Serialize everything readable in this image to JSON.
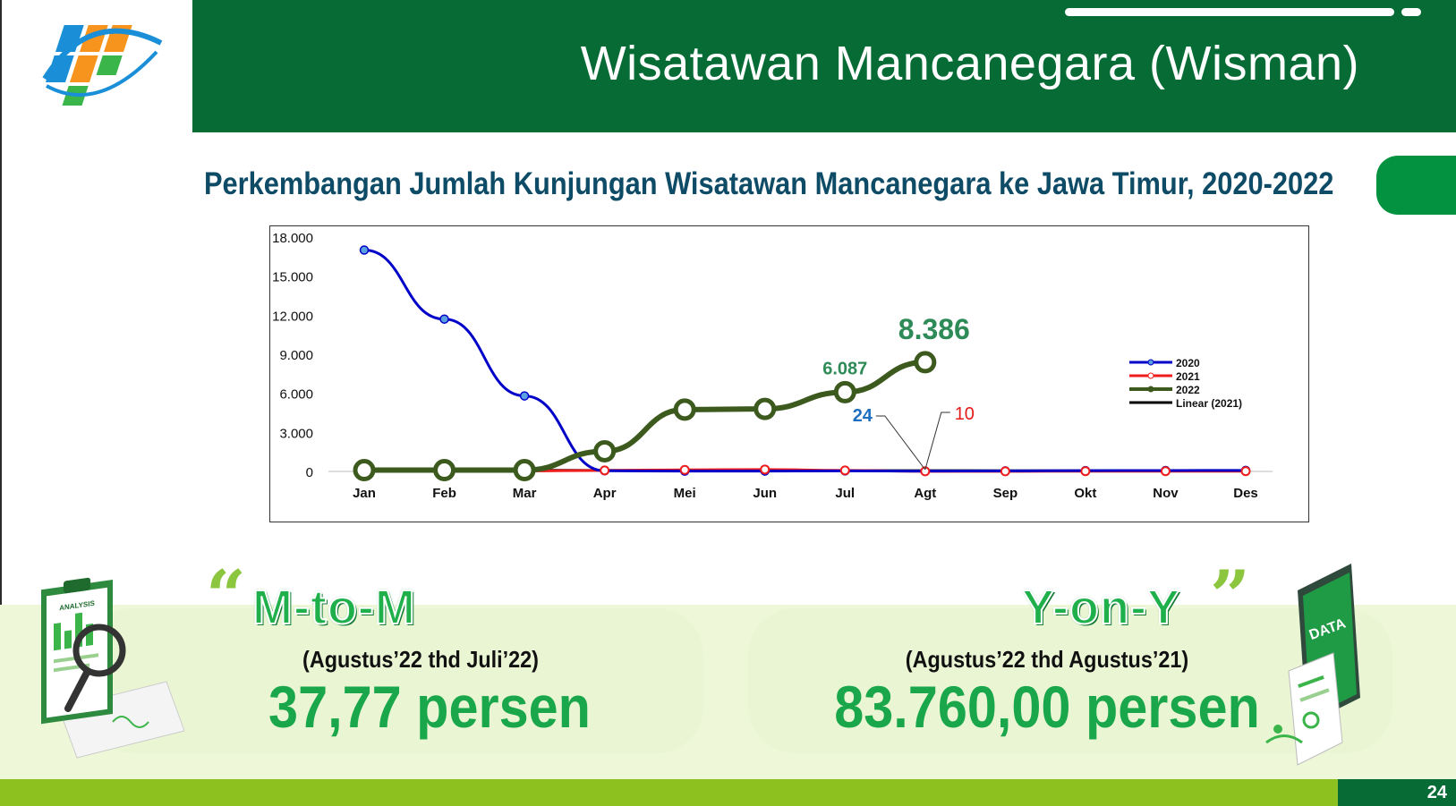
{
  "header": {
    "title": "Wisatawan Mancanegara (Wisman)"
  },
  "subtitle": "Perkembangan Jumlah Kunjungan Wisatawan Mancanegara ke Jawa Timur, 2020-2022",
  "colors": {
    "header_green": "#076b35",
    "accent_green": "#1aa64a",
    "footer_lime": "#8dc11f",
    "series_2020": "#0000c8",
    "series_2021": "#ee1c1c",
    "series_2022": "#3d5a1e",
    "linear_2021": "#000000"
  },
  "chart_data": {
    "type": "line",
    "categories": [
      "Jan",
      "Feb",
      "Mar",
      "Apr",
      "Mei",
      "Jun",
      "Jul",
      "Agt",
      "Sep",
      "Okt",
      "Nov",
      "Des"
    ],
    "y_ticks": [
      "18.000",
      "15.000",
      "12.000",
      "9.000",
      "6.000",
      "3.000",
      "0"
    ],
    "ylim": [
      0,
      18000
    ],
    "series": [
      {
        "name": "2020",
        "values": [
          17000,
          11700,
          5800,
          50,
          24,
          30,
          40,
          24,
          40,
          60,
          70,
          80
        ]
      },
      {
        "name": "2021",
        "values": [
          60,
          40,
          40,
          80,
          120,
          150,
          80,
          10,
          10,
          20,
          20,
          20
        ]
      },
      {
        "name": "2022",
        "values": [
          100,
          100,
          100,
          1550,
          4750,
          4800,
          6087,
          8386,
          null,
          null,
          null,
          null
        ]
      },
      {
        "name": "Linear (2021)",
        "values": [
          130,
          125,
          120,
          115,
          110,
          105,
          100,
          95,
          90,
          85,
          80,
          75
        ]
      }
    ],
    "annotations": {
      "label_2022_jul": "6.087",
      "label_2022_agt": "8.386",
      "label_2020_agt": "24",
      "label_2021_agt": "10"
    }
  },
  "mtom": {
    "quote_open": "“",
    "title": "M-to-M",
    "period": "(Agustus’22 thd Juli’22)",
    "value": "37,77 persen"
  },
  "yony": {
    "quote_close": "”",
    "title": "Y-on-Y",
    "period": "(Agustus’22 thd Agustus’21)",
    "value": "83.760,00 persen"
  },
  "illustrations": {
    "left_label": "ANALYSIS",
    "right_label": "DATA"
  },
  "footer": {
    "page_number": "24"
  }
}
